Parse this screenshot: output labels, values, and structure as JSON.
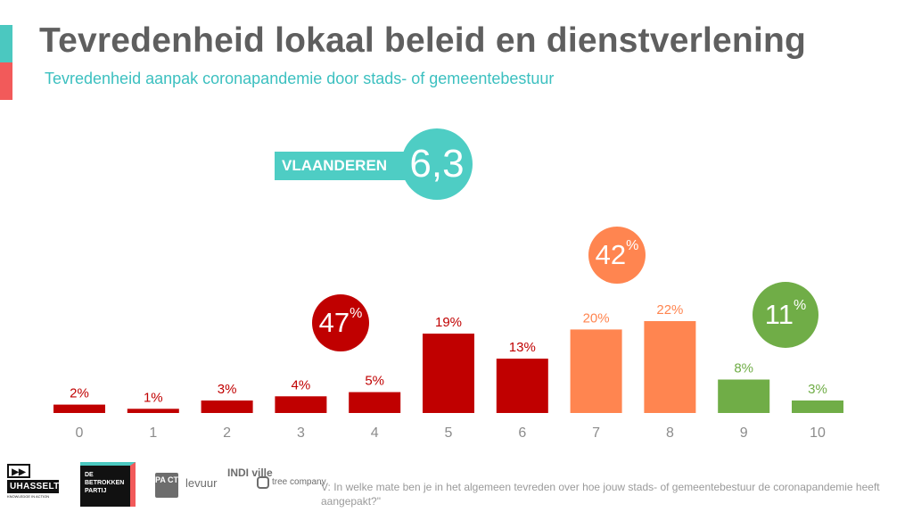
{
  "header": {
    "title": "Tevredenheid lokaal beleid en dienstverlening",
    "subtitle": "Tevredenheid aanpak coronapandemie door stads- of gemeentebestuur"
  },
  "score": {
    "label": "VLAANDEREN",
    "value": "6,3",
    "color": "#4ecdc4"
  },
  "groups": [
    {
      "value": "47",
      "unit": "%",
      "color": "#c00000"
    },
    {
      "value": "42",
      "unit": "%",
      "color": "#ff8550"
    },
    {
      "value": "11",
      "unit": "%",
      "color": "#70ad47"
    }
  ],
  "chart_data": {
    "type": "bar",
    "title": "",
    "xlabel": "",
    "ylabel": "",
    "categories": [
      "0",
      "1",
      "2",
      "3",
      "4",
      "5",
      "6",
      "7",
      "8",
      "9",
      "10"
    ],
    "values": [
      2,
      1,
      3,
      4,
      5,
      19,
      13,
      20,
      22,
      8,
      3
    ],
    "value_labels": [
      "2%",
      "1%",
      "3%",
      "4%",
      "5%",
      "19%",
      "13%",
      "20%",
      "22%",
      "8%",
      "3%"
    ],
    "colors": [
      "#c00000",
      "#c00000",
      "#c00000",
      "#c00000",
      "#c00000",
      "#c00000",
      "#c00000",
      "#ff8550",
      "#ff8550",
      "#70ad47",
      "#70ad47"
    ],
    "ylim": [
      0,
      22
    ],
    "grid": false,
    "legend": "none"
  },
  "footer": {
    "logos": {
      "uhasselt_mark": "▶▶",
      "uhasselt": "UHASSELT",
      "uhasselt_tagline": "KNOWLEDGE IN ACTION",
      "de_betrokken_partij": "DE BETROKKEN PARTIJ",
      "pact": "PA CT",
      "levuur": "levuur",
      "indiville": "INDI ville",
      "tree_company": "tree company"
    },
    "question": "V: In welke mate ben je in het algemeen tevreden over hoe jouw stads- of gemeentebestuur de coronapandemie heeft aangepakt?\""
  }
}
